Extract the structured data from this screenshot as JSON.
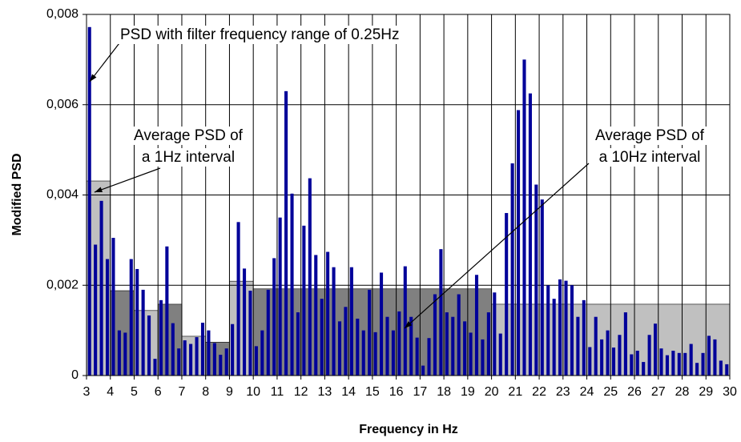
{
  "chart_data": {
    "type": "bar",
    "xlabel": "Frequency in Hz",
    "ylabel": "Modified PSD",
    "xlim": [
      3,
      30
    ],
    "xticks": [
      3,
      4,
      5,
      6,
      7,
      8,
      9,
      10,
      11,
      12,
      13,
      14,
      15,
      16,
      17,
      18,
      19,
      20,
      21,
      22,
      23,
      24,
      25,
      26,
      27,
      28,
      29,
      30
    ],
    "ylim": [
      0,
      0.008
    ],
    "yticks": [
      0,
      {
        "value": 0.002,
        "label": "0,002"
      },
      {
        "value": 0.004,
        "label": "0,004"
      },
      {
        "value": 0.006,
        "label": "0,006"
      },
      {
        "value": 0.008,
        "label": "0,008"
      }
    ],
    "grid": true,
    "color": "#000099",
    "x": [
      3.125,
      3.375,
      3.625,
      3.875,
      4.125,
      4.375,
      4.625,
      4.875,
      5.125,
      5.375,
      5.625,
      5.875,
      6.125,
      6.375,
      6.625,
      6.875,
      7.125,
      7.375,
      7.625,
      7.875,
      8.125,
      8.375,
      8.625,
      8.875,
      9.125,
      9.375,
      9.625,
      9.875,
      10.125,
      10.375,
      10.625,
      10.875,
      11.125,
      11.375,
      11.625,
      11.875,
      12.125,
      12.375,
      12.625,
      12.875,
      13.125,
      13.375,
      13.625,
      13.875,
      14.125,
      14.375,
      14.625,
      14.875,
      15.125,
      15.375,
      15.625,
      15.875,
      16.125,
      16.375,
      16.625,
      16.875,
      17.125,
      17.375,
      17.625,
      17.875,
      18.125,
      18.375,
      18.625,
      18.875,
      19.125,
      19.375,
      19.625,
      19.875,
      20.125,
      20.375,
      20.625,
      20.875,
      21.125,
      21.375,
      21.625,
      21.875,
      22.125,
      22.375,
      22.625,
      22.875,
      23.125,
      23.375,
      23.625,
      23.875,
      24.125,
      24.375,
      24.625,
      24.875,
      25.125,
      25.375,
      25.625,
      25.875,
      26.125,
      26.375,
      26.625,
      26.875,
      27.125,
      27.375,
      27.625,
      27.875,
      28.125,
      28.375,
      28.625,
      28.875,
      29.125,
      29.375,
      29.625,
      29.875
    ],
    "values": [
      0.00772,
      0.0029,
      0.00387,
      0.00258,
      0.00305,
      0.001,
      0.00095,
      0.00258,
      0.00236,
      0.0019,
      0.00133,
      0.00037,
      0.00167,
      0.00286,
      0.00116,
      0.0006,
      0.00078,
      0.0007,
      0.00085,
      0.00117,
      0.001,
      0.00072,
      0.00046,
      0.0006,
      0.00114,
      0.0034,
      0.00237,
      0.00188,
      0.00065,
      0.001,
      0.0019,
      0.0026,
      0.0035,
      0.0063,
      0.00403,
      0.0014,
      0.00332,
      0.00437,
      0.00267,
      0.0017,
      0.00274,
      0.0024,
      0.0012,
      0.00152,
      0.0024,
      0.00126,
      0.001,
      0.0019,
      0.00096,
      0.00228,
      0.0013,
      0.001,
      0.00142,
      0.00242,
      0.0013,
      0.00084,
      0.00022,
      0.00083,
      0.0018,
      0.0028,
      0.0014,
      0.0013,
      0.0018,
      0.0012,
      0.00095,
      0.00223,
      0.0008,
      0.0014,
      0.00184,
      0.00093,
      0.0036,
      0.0047,
      0.00588,
      0.007,
      0.00625,
      0.00423,
      0.0039,
      0.002,
      0.0017,
      0.00213,
      0.0021,
      0.002,
      0.0013,
      0.00167,
      0.00063,
      0.0013,
      0.0008,
      0.001,
      0.00062,
      0.0009,
      0.0014,
      0.00047,
      0.00055,
      0.0003,
      0.0009,
      0.00115,
      0.0006,
      0.00045,
      0.00055,
      0.0005,
      0.0005,
      0.0007,
      0.00028,
      0.0005,
      0.00088,
      0.0008,
      0.00033,
      0.00025
    ],
    "intervals": {
      "edges": [
        3,
        4,
        5,
        6,
        7,
        8,
        9,
        10,
        20,
        30
      ],
      "values": [
        0.00431,
        0.00188,
        0.00144,
        0.00158,
        0.00087,
        0.00074,
        0.00209,
        0.00192,
        0.00158
      ],
      "colors": [
        "#c0c0c0",
        "#808080",
        "#c0c0c0",
        "#808080",
        "#c0c0c0",
        "#808080",
        "#c0c0c0",
        "#808080",
        "#c0c0c0"
      ]
    },
    "annotations": [
      {
        "lines": [
          "PSD with filter frequency range of 0.25Hz"
        ]
      },
      {
        "lines": [
          "Average PSD of",
          "a 1Hz interval"
        ]
      },
      {
        "lines": [
          "Average PSD of",
          "a 10Hz interval"
        ]
      }
    ]
  }
}
